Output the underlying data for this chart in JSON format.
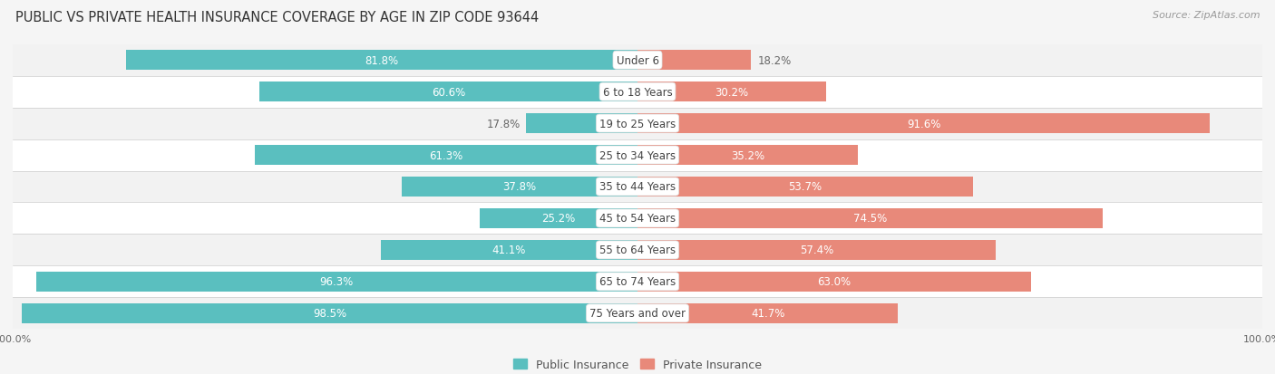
{
  "title": "PUBLIC VS PRIVATE HEALTH INSURANCE COVERAGE BY AGE IN ZIP CODE 93644",
  "source": "Source: ZipAtlas.com",
  "categories": [
    "Under 6",
    "6 to 18 Years",
    "19 to 25 Years",
    "25 to 34 Years",
    "35 to 44 Years",
    "45 to 54 Years",
    "55 to 64 Years",
    "65 to 74 Years",
    "75 Years and over"
  ],
  "public": [
    81.8,
    60.6,
    17.8,
    61.3,
    37.8,
    25.2,
    41.1,
    96.3,
    98.5
  ],
  "private": [
    18.2,
    30.2,
    91.6,
    35.2,
    53.7,
    74.5,
    57.4,
    63.0,
    41.7
  ],
  "public_color": "#5abfbf",
  "private_color": "#e8897a",
  "row_colors": [
    "#f2f2f2",
    "#ffffff"
  ],
  "background_color": "#f5f5f5",
  "title_fontsize": 10.5,
  "label_fontsize": 8.5,
  "category_fontsize": 8.5,
  "legend_fontsize": 9,
  "axis_label_fontsize": 8
}
